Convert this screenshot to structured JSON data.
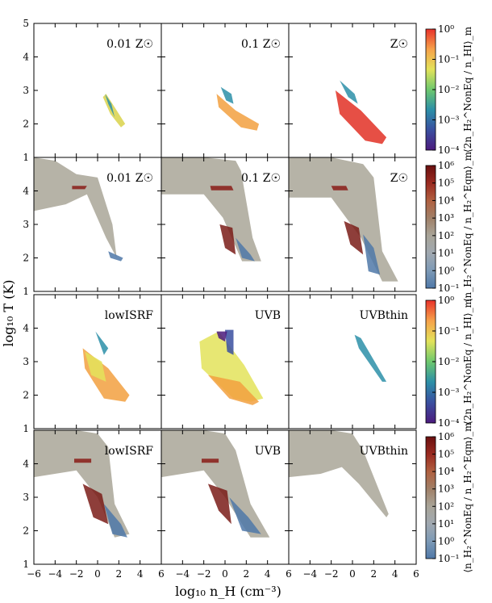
{
  "figure": {
    "xlabel": "log₁₀ n_H (cm⁻³)",
    "ylabel": "log₁₀ T (K)"
  },
  "chart_data": {
    "type": "scatter",
    "description_grid": "4 rows x 3 columns of 2D phase-space maps, colour-coded",
    "xlim": [
      -6,
      6
    ],
    "ylim": [
      1,
      5
    ],
    "x_ticks": [
      -6,
      -4,
      -2,
      0,
      2,
      4,
      6
    ],
    "y_ticks": [
      1,
      2,
      3,
      4,
      5
    ],
    "x_tick_labels": [
      "−6",
      "−4",
      "−2",
      "0",
      "2",
      "4",
      "6"
    ],
    "y_tick_labels": [
      "1",
      "2",
      "3",
      "4",
      "5"
    ],
    "panel_labels": [
      [
        "0.01 Z☉",
        "0.1 Z☉",
        "Z☉"
      ],
      [
        "0.01 Z☉",
        "0.1 Z☉",
        "Z☉"
      ],
      [
        "lowISRF",
        "UVB",
        "UVBthin"
      ],
      [
        "lowISRF",
        "UVB",
        "UVBthin"
      ]
    ],
    "colorbars": [
      {
        "row": 0,
        "quantity": "⟨2n_H₂^NonEq / n_HI⟩_m",
        "scale": "log",
        "range": [
          0.0001,
          1
        ],
        "tick_labels": [
          "10⁰",
          "10⁻¹",
          "10⁻²",
          "10⁻³",
          "10⁻⁴"
        ],
        "colors": [
          "#e8312a",
          "#f6a24a",
          "#e3e35a",
          "#6ec86e",
          "#2c8fa8",
          "#3a4fa0",
          "#4b1a7d"
        ]
      },
      {
        "row": 1,
        "quantity": "⟨n_H₂^NonEq / n_H₂^Eqm⟩_m",
        "scale": "log",
        "range": [
          0.1,
          1000000
        ],
        "tick_labels": [
          "10⁶",
          "10⁵",
          "10⁴",
          "10³",
          "10²",
          "10¹",
          "10⁰",
          "10⁻¹"
        ],
        "colors": [
          "#6a1010",
          "#9a2a20",
          "#b06040",
          "#a08068",
          "#a8a498",
          "#a0a8b0",
          "#7d9ab6",
          "#4f78a8"
        ]
      },
      {
        "row": 2,
        "quantity": "⟨2n_H₂^NonEq / n_HI⟩_m",
        "scale": "log",
        "range": [
          0.0001,
          1
        ],
        "tick_labels": [
          "10⁰",
          "10⁻¹",
          "10⁻²",
          "10⁻³",
          "10⁻⁴"
        ],
        "colors": [
          "#e8312a",
          "#f6a24a",
          "#e3e35a",
          "#6ec86e",
          "#2c8fa8",
          "#3a4fa0",
          "#4b1a7d"
        ]
      },
      {
        "row": 3,
        "quantity": "⟨n_H₂^NonEq / n_H₂^Eqm⟩_m",
        "scale": "log",
        "range": [
          0.1,
          1000000
        ],
        "tick_labels": [
          "10⁶",
          "10⁵",
          "10⁴",
          "10³",
          "10²",
          "10¹",
          "10⁰",
          "10⁻¹"
        ],
        "colors": [
          "#6a1010",
          "#9a2a20",
          "#b06040",
          "#a08068",
          "#a8a498",
          "#a0a8b0",
          "#7d9ab6",
          "#4f78a8"
        ]
      }
    ],
    "panels": [
      [
        {
          "regions": [
            {
              "color": "#d9d24a",
              "x": [
                0.8,
                1.8,
                2.6,
                2.2,
                1.2,
                0.5
              ],
              "y": [
                2.9,
                2.4,
                2.0,
                1.9,
                2.3,
                2.8
              ]
            },
            {
              "color": "#2c8fa8",
              "x": [
                0.7,
                1.3,
                1.6,
                1.0
              ],
              "y": [
                2.9,
                2.6,
                2.2,
                2.6
              ]
            }
          ]
        },
        {
          "regions": [
            {
              "color": "#f2a040",
              "x": [
                -0.8,
                1.0,
                3.2,
                3.0,
                1.5,
                -0.6
              ],
              "y": [
                2.9,
                2.4,
                2.0,
                1.8,
                1.9,
                2.5
              ]
            },
            {
              "color": "#2c8fa8",
              "x": [
                -0.4,
                0.6,
                0.8,
                0.1
              ],
              "y": [
                3.1,
                2.9,
                2.6,
                2.7
              ]
            }
          ]
        },
        {
          "regions": [
            {
              "color": "#e23024",
              "x": [
                -1.6,
                0.8,
                3.2,
                2.8,
                1.2,
                -1.2
              ],
              "y": [
                3.0,
                2.4,
                1.6,
                1.4,
                1.5,
                2.3
              ]
            },
            {
              "color": "#2c8fa8",
              "x": [
                -1.2,
                0.2,
                0.5,
                -0.4
              ],
              "y": [
                3.3,
                2.9,
                2.6,
                2.8
              ]
            }
          ]
        }
      ],
      [
        {
          "regions": [
            {
              "color": "#a9a698",
              "x": [
                -6,
                -4,
                -2,
                0,
                1.4,
                1.8,
                0.8,
                -1,
                -3,
                -6
              ],
              "y": [
                5,
                4.9,
                4.5,
                4.4,
                3.0,
                2.0,
                2.6,
                3.9,
                3.6,
                3.4
              ]
            },
            {
              "color": "#8a1c18",
              "x": [
                -2.4,
                -1.0,
                -1.2,
                -2.4
              ],
              "y": [
                4.15,
                4.15,
                4.05,
                4.05
              ]
            },
            {
              "color": "#4f78a8",
              "x": [
                1.0,
                2.4,
                2.2,
                1.2
              ],
              "y": [
                2.2,
                2.0,
                1.9,
                2.0
              ]
            }
          ]
        },
        {
          "regions": [
            {
              "color": "#a9a698",
              "x": [
                -6,
                -2,
                1,
                1.5,
                2.6,
                3.4,
                1.6,
                -0.2,
                -2,
                -6
              ],
              "y": [
                5,
                5,
                4.9,
                4.6,
                2.6,
                1.9,
                1.9,
                3.2,
                3.9,
                3.9
              ]
            },
            {
              "color": "#8a1c18",
              "x": [
                -1.4,
                0.6,
                0.8,
                -1.3
              ],
              "y": [
                4.15,
                4.15,
                4.02,
                4.02
              ]
            },
            {
              "color": "#7a1c18",
              "x": [
                -0.5,
                0.7,
                1.0,
                0.0
              ],
              "y": [
                3.0,
                2.9,
                2.1,
                2.3
              ]
            },
            {
              "color": "#4f78a8",
              "x": [
                1.0,
                2.4,
                2.8,
                1.6
              ],
              "y": [
                2.6,
                2.1,
                1.9,
                2.0
              ]
            }
          ]
        },
        {
          "regions": [
            {
              "color": "#a9a698",
              "x": [
                -6,
                -2,
                1,
                2,
                2.8,
                4.3,
                2.8,
                0.8,
                -2,
                -6
              ],
              "y": [
                5,
                5,
                4.8,
                4.4,
                2.2,
                1.3,
                1.3,
                2.6,
                3.8,
                3.8
              ]
            },
            {
              "color": "#8a1c18",
              "x": [
                -2.0,
                -0.6,
                -0.4,
                -1.8
              ],
              "y": [
                4.15,
                4.15,
                4.02,
                4.02
              ]
            },
            {
              "color": "#7a1c18",
              "x": [
                -0.8,
                0.6,
                1.0,
                -0.2
              ],
              "y": [
                3.1,
                2.9,
                2.1,
                2.4
              ]
            },
            {
              "color": "#4f78a8",
              "x": [
                1.0,
                2.0,
                2.6,
                1.5
              ],
              "y": [
                2.7,
                2.3,
                1.5,
                1.6
              ]
            }
          ]
        }
      ],
      [
        {
          "regions": [
            {
              "color": "#f2a040",
              "x": [
                -1.4,
                1.0,
                3.0,
                2.6,
                0.6,
                -1.2
              ],
              "y": [
                3.4,
                2.8,
                2.0,
                1.8,
                1.9,
                2.8
              ]
            },
            {
              "color": "#e3e35a",
              "x": [
                -1.2,
                0.4,
                0.8,
                -0.6
              ],
              "y": [
                3.3,
                3.0,
                2.4,
                2.6
              ]
            },
            {
              "color": "#2c8fa8",
              "x": [
                -0.2,
                1.0,
                0.6
              ],
              "y": [
                3.9,
                3.4,
                3.2
              ]
            }
          ]
        },
        {
          "regions": [
            {
              "color": "#e3e35a",
              "x": [
                -2.4,
                -0.6,
                1.8,
                3.6,
                2.4,
                0.8,
                -2.2
              ],
              "y": [
                3.6,
                3.9,
                2.9,
                1.9,
                1.8,
                1.9,
                2.8
              ]
            },
            {
              "color": "#f2a040",
              "x": [
                -1.6,
                1.4,
                3.2,
                2.6,
                0.4
              ],
              "y": [
                2.6,
                2.4,
                1.8,
                1.7,
                1.9
              ]
            },
            {
              "color": "#3a4fa0",
              "x": [
                0.0,
                0.8,
                0.8,
                0.2
              ],
              "y": [
                3.95,
                3.95,
                3.2,
                3.3
              ]
            },
            {
              "color": "#4b1a7d",
              "x": [
                -0.8,
                0.2,
                0.0,
                -0.6
              ],
              "y": [
                3.9,
                3.9,
                3.6,
                3.7
              ]
            }
          ]
        },
        {
          "regions": [
            {
              "color": "#2c8fa8",
              "x": [
                0.2,
                0.8,
                3.2,
                2.8,
                0.6
              ],
              "y": [
                3.8,
                3.7,
                2.4,
                2.4,
                3.4
              ]
            }
          ]
        }
      ],
      [
        {
          "regions": [
            {
              "color": "#a9a698",
              "x": [
                -6,
                -2,
                0,
                1,
                1.6,
                3.0,
                1.6,
                0,
                -2,
                -6
              ],
              "y": [
                5,
                5,
                4.9,
                4.5,
                2.8,
                1.9,
                1.8,
                3.0,
                3.8,
                3.6
              ]
            },
            {
              "color": "#8a1c18",
              "x": [
                -2.2,
                -0.6,
                -0.6,
                -2.2
              ],
              "y": [
                4.15,
                4.15,
                4.03,
                4.03
              ]
            },
            {
              "color": "#7a1c18",
              "x": [
                -1.4,
                0.4,
                1.0,
                -0.4
              ],
              "y": [
                3.4,
                3.1,
                2.2,
                2.4
              ]
            },
            {
              "color": "#4f78a8",
              "x": [
                0.6,
                2.2,
                2.8,
                1.4
              ],
              "y": [
                2.8,
                2.2,
                1.8,
                1.9
              ]
            }
          ]
        },
        {
          "regions": [
            {
              "color": "#a9a698",
              "x": [
                -6,
                -2,
                0,
                1,
                2.4,
                4.2,
                2.4,
                0,
                -2,
                -6
              ],
              "y": [
                5,
                5,
                4.9,
                4.4,
                2.8,
                1.8,
                1.8,
                3.0,
                3.8,
                3.6
              ]
            },
            {
              "color": "#8a1c18",
              "x": [
                -2.2,
                -0.6,
                -0.6,
                -2.2
              ],
              "y": [
                4.15,
                4.15,
                4.03,
                4.03
              ]
            },
            {
              "color": "#7a1c18",
              "x": [
                -1.6,
                0.2,
                0.6,
                -0.6
              ],
              "y": [
                3.4,
                3.2,
                2.2,
                2.6
              ]
            },
            {
              "color": "#4f78a8",
              "x": [
                0.4,
                2.2,
                3.4,
                1.6
              ],
              "y": [
                3.0,
                2.4,
                1.9,
                2.0
              ]
            }
          ]
        },
        {
          "regions": [
            {
              "color": "#a9a698",
              "x": [
                -6,
                -2,
                0,
                1,
                3.4,
                3.2,
                0.6,
                -1,
                -3,
                -6
              ],
              "y": [
                5,
                5,
                4.9,
                4.4,
                2.5,
                2.4,
                3.4,
                3.9,
                3.7,
                3.6
              ]
            }
          ]
        }
      ]
    ]
  }
}
